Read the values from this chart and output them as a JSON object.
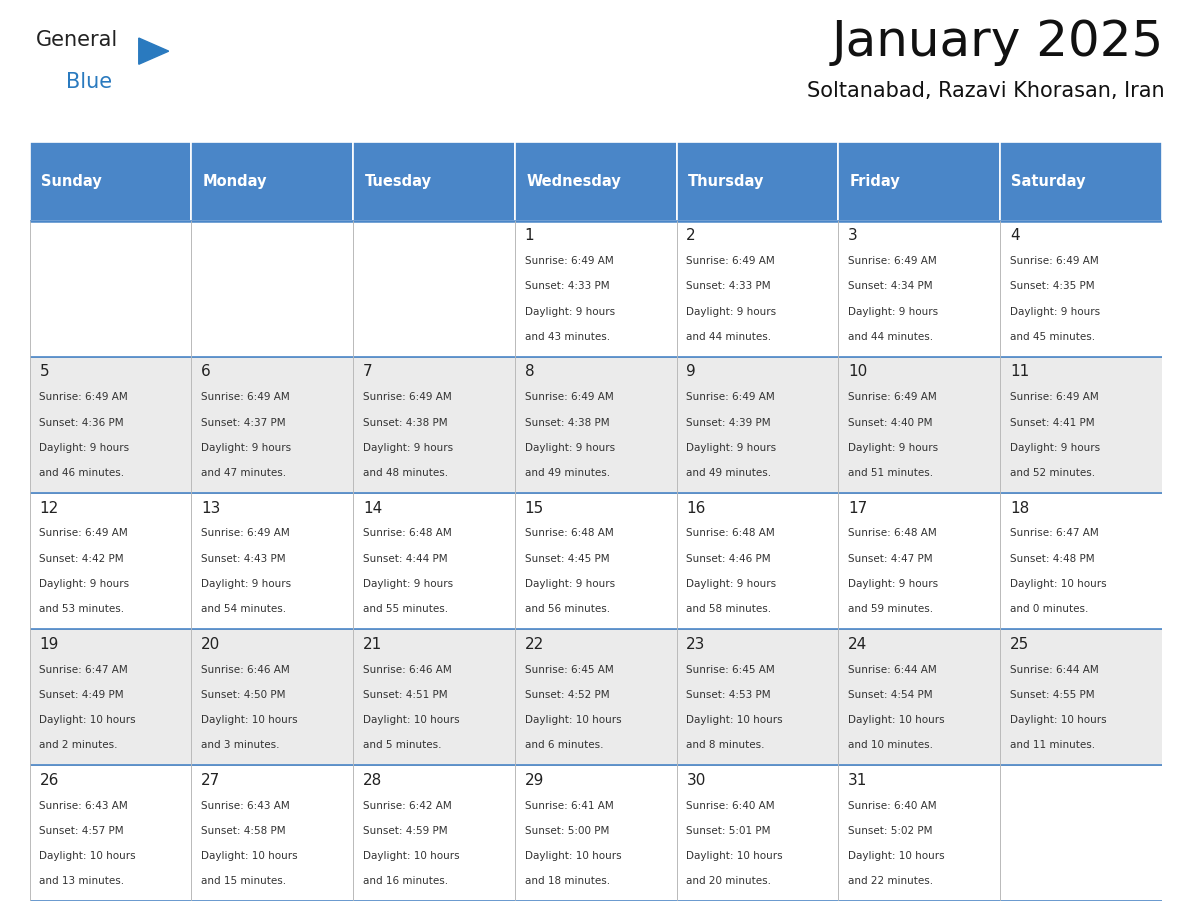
{
  "title": "January 2025",
  "subtitle": "Soltanabad, Razavi Khorasan, Iran",
  "days_of_week": [
    "Sunday",
    "Monday",
    "Tuesday",
    "Wednesday",
    "Thursday",
    "Friday",
    "Saturday"
  ],
  "header_bg": "#4a86c8",
  "header_text": "#ffffff",
  "cell_bg_odd": "#ebebeb",
  "cell_bg_even": "#ffffff",
  "cell_border": "#bbbbbb",
  "text_color": "#333333",
  "day_number_color": "#222222",
  "calendar_data": [
    [
      {
        "day": "",
        "sunrise": "",
        "sunset": "",
        "daylight": ""
      },
      {
        "day": "",
        "sunrise": "",
        "sunset": "",
        "daylight": ""
      },
      {
        "day": "",
        "sunrise": "",
        "sunset": "",
        "daylight": ""
      },
      {
        "day": "1",
        "sunrise": "6:49 AM",
        "sunset": "4:33 PM",
        "daylight": "9 hours and 43 minutes."
      },
      {
        "day": "2",
        "sunrise": "6:49 AM",
        "sunset": "4:33 PM",
        "daylight": "9 hours and 44 minutes."
      },
      {
        "day": "3",
        "sunrise": "6:49 AM",
        "sunset": "4:34 PM",
        "daylight": "9 hours and 44 minutes."
      },
      {
        "day": "4",
        "sunrise": "6:49 AM",
        "sunset": "4:35 PM",
        "daylight": "9 hours and 45 minutes."
      }
    ],
    [
      {
        "day": "5",
        "sunrise": "6:49 AM",
        "sunset": "4:36 PM",
        "daylight": "9 hours and 46 minutes."
      },
      {
        "day": "6",
        "sunrise": "6:49 AM",
        "sunset": "4:37 PM",
        "daylight": "9 hours and 47 minutes."
      },
      {
        "day": "7",
        "sunrise": "6:49 AM",
        "sunset": "4:38 PM",
        "daylight": "9 hours and 48 minutes."
      },
      {
        "day": "8",
        "sunrise": "6:49 AM",
        "sunset": "4:38 PM",
        "daylight": "9 hours and 49 minutes."
      },
      {
        "day": "9",
        "sunrise": "6:49 AM",
        "sunset": "4:39 PM",
        "daylight": "9 hours and 49 minutes."
      },
      {
        "day": "10",
        "sunrise": "6:49 AM",
        "sunset": "4:40 PM",
        "daylight": "9 hours and 51 minutes."
      },
      {
        "day": "11",
        "sunrise": "6:49 AM",
        "sunset": "4:41 PM",
        "daylight": "9 hours and 52 minutes."
      }
    ],
    [
      {
        "day": "12",
        "sunrise": "6:49 AM",
        "sunset": "4:42 PM",
        "daylight": "9 hours and 53 minutes."
      },
      {
        "day": "13",
        "sunrise": "6:49 AM",
        "sunset": "4:43 PM",
        "daylight": "9 hours and 54 minutes."
      },
      {
        "day": "14",
        "sunrise": "6:48 AM",
        "sunset": "4:44 PM",
        "daylight": "9 hours and 55 minutes."
      },
      {
        "day": "15",
        "sunrise": "6:48 AM",
        "sunset": "4:45 PM",
        "daylight": "9 hours and 56 minutes."
      },
      {
        "day": "16",
        "sunrise": "6:48 AM",
        "sunset": "4:46 PM",
        "daylight": "9 hours and 58 minutes."
      },
      {
        "day": "17",
        "sunrise": "6:48 AM",
        "sunset": "4:47 PM",
        "daylight": "9 hours and 59 minutes."
      },
      {
        "day": "18",
        "sunrise": "6:47 AM",
        "sunset": "4:48 PM",
        "daylight": "10 hours and 0 minutes."
      }
    ],
    [
      {
        "day": "19",
        "sunrise": "6:47 AM",
        "sunset": "4:49 PM",
        "daylight": "10 hours and 2 minutes."
      },
      {
        "day": "20",
        "sunrise": "6:46 AM",
        "sunset": "4:50 PM",
        "daylight": "10 hours and 3 minutes."
      },
      {
        "day": "21",
        "sunrise": "6:46 AM",
        "sunset": "4:51 PM",
        "daylight": "10 hours and 5 minutes."
      },
      {
        "day": "22",
        "sunrise": "6:45 AM",
        "sunset": "4:52 PM",
        "daylight": "10 hours and 6 minutes."
      },
      {
        "day": "23",
        "sunrise": "6:45 AM",
        "sunset": "4:53 PM",
        "daylight": "10 hours and 8 minutes."
      },
      {
        "day": "24",
        "sunrise": "6:44 AM",
        "sunset": "4:54 PM",
        "daylight": "10 hours and 10 minutes."
      },
      {
        "day": "25",
        "sunrise": "6:44 AM",
        "sunset": "4:55 PM",
        "daylight": "10 hours and 11 minutes."
      }
    ],
    [
      {
        "day": "26",
        "sunrise": "6:43 AM",
        "sunset": "4:57 PM",
        "daylight": "10 hours and 13 minutes."
      },
      {
        "day": "27",
        "sunrise": "6:43 AM",
        "sunset": "4:58 PM",
        "daylight": "10 hours and 15 minutes."
      },
      {
        "day": "28",
        "sunrise": "6:42 AM",
        "sunset": "4:59 PM",
        "daylight": "10 hours and 16 minutes."
      },
      {
        "day": "29",
        "sunrise": "6:41 AM",
        "sunset": "5:00 PM",
        "daylight": "10 hours and 18 minutes."
      },
      {
        "day": "30",
        "sunrise": "6:40 AM",
        "sunset": "5:01 PM",
        "daylight": "10 hours and 20 minutes."
      },
      {
        "day": "31",
        "sunrise": "6:40 AM",
        "sunset": "5:02 PM",
        "daylight": "10 hours and 22 minutes."
      },
      {
        "day": "",
        "sunrise": "",
        "sunset": "",
        "daylight": ""
      }
    ]
  ],
  "logo_text1": "General",
  "logo_text2": "Blue",
  "logo_color1": "#222222",
  "logo_color2": "#2a7abf",
  "logo_triangle_color": "#2a7abf",
  "title_fontsize": 36,
  "subtitle_fontsize": 15,
  "header_fontsize": 10.5,
  "day_num_fontsize": 11,
  "cell_text_fontsize": 7.5
}
